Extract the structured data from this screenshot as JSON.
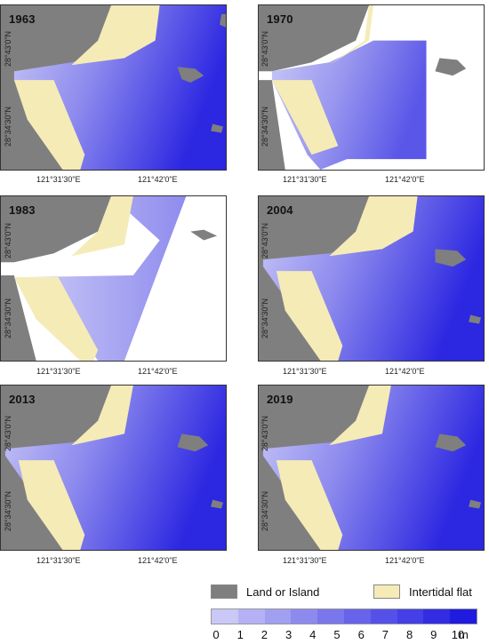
{
  "panels": [
    {
      "year": "1963",
      "lat_top": "28°43'0\"N",
      "lat_bottom": "28°34'30\"N",
      "lon_left": "121°31'30\"E",
      "lon_right": "121°42'0\"E"
    },
    {
      "year": "1970",
      "lat_top": "28°43'0\"N",
      "lat_bottom": "28°34'30\"N",
      "lon_left": "121°31'30\"E",
      "lon_right": "121°42'0\"E"
    },
    {
      "year": "1983",
      "lat_top": "28°43'0\"N",
      "lat_bottom": "28°34'30\"N",
      "lon_left": "121°31'30\"E",
      "lon_right": "121°42'0\"E"
    },
    {
      "year": "2004",
      "lat_top": "28°43'0\"N",
      "lat_bottom": "28°34'30\"N",
      "lon_left": "121°31'30\"E",
      "lon_right": "121°42'0\"E"
    },
    {
      "year": "2013",
      "lat_top": "28°43'0\"N",
      "lat_bottom": "28°34'30\"N",
      "lon_left": "121°31'30\"E",
      "lon_right": "121°42'0\"E"
    },
    {
      "year": "2019",
      "lat_top": "28°43'0\"N",
      "lat_bottom": "28°34'30\"N",
      "lon_left": "121°31'30\"E",
      "lon_right": "121°42'0\"E"
    }
  ],
  "legend": {
    "land_label": "Land or Island",
    "land_color": "#7f7f7f",
    "flat_label": "Intertidal flat",
    "flat_color": "#f5ebb7"
  },
  "colorbar": {
    "ticks": [
      "0",
      "1",
      "2",
      "3",
      "4",
      "5",
      "6",
      "7",
      "8",
      "9",
      "10"
    ],
    "unit": "m",
    "colors": [
      "#c9c8f6",
      "#b4b2f4",
      "#a19ff0",
      "#8d8aee",
      "#7a76ec",
      "#6763ea",
      "#5551e8",
      "#443fe6",
      "#322de3",
      "#1f1bdf"
    ]
  }
}
